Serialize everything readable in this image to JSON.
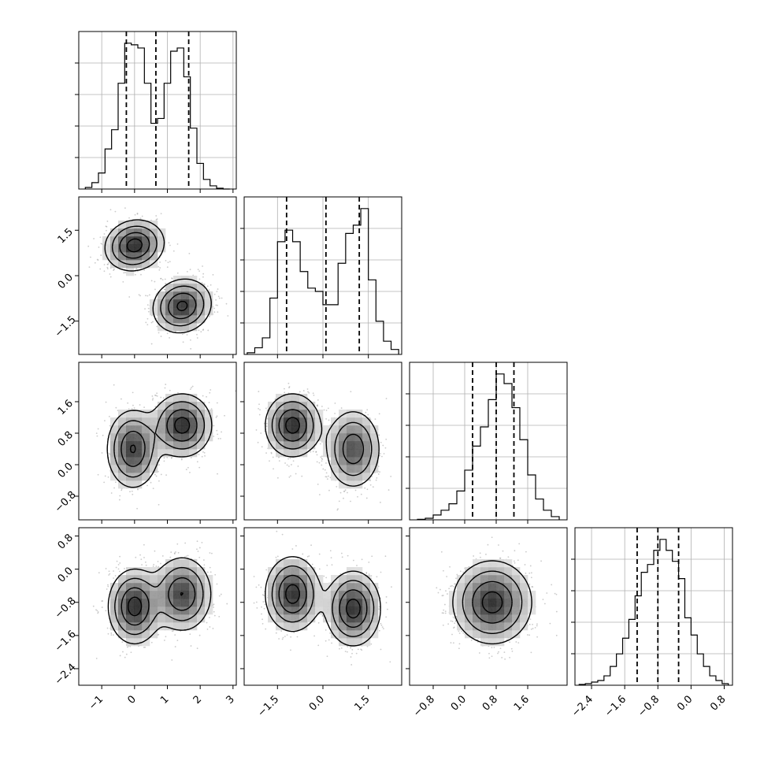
{
  "chart_data": {
    "type": "corner",
    "grid": true,
    "colors": {
      "ink": "#000000",
      "grid": "#b0b0b0",
      "scatter": "#8c8c8c"
    },
    "parameters": [
      {
        "name": "",
        "range": [
          -1.7,
          3.1
        ],
        "ticks": [
          -1,
          0,
          1,
          2,
          3
        ],
        "tick_labels": [
          "−1",
          "0",
          "1",
          "2",
          "3"
        ],
        "quantiles": [
          -0.25,
          0.65,
          1.65
        ],
        "hist": {
          "edges": [
            -1.5,
            -1.3,
            -1.1,
            -0.9,
            -0.7,
            -0.5,
            -0.3,
            -0.1,
            0.1,
            0.3,
            0.5,
            0.7,
            0.9,
            1.1,
            1.3,
            1.5,
            1.7,
            1.9,
            2.1,
            2.3,
            2.5,
            2.7,
            2.9
          ],
          "counts": [
            0.01,
            0.04,
            0.1,
            0.25,
            0.37,
            0.66,
            0.91,
            0.9,
            0.88,
            0.66,
            0.41,
            0.44,
            0.66,
            0.86,
            0.88,
            0.7,
            0.38,
            0.16,
            0.06,
            0.02,
            0.005,
            0
          ]
        },
        "mixture": [
          {
            "w": 0.5,
            "mu": 0.0,
            "sd": 0.5
          },
          {
            "w": 0.5,
            "mu": 1.45,
            "sd": 0.5
          }
        ]
      },
      {
        "name": "",
        "range": [
          -2.6,
          2.6
        ],
        "ticks": [
          -1.5,
          0.0,
          1.5
        ],
        "tick_labels": [
          "−1.5",
          "0.0",
          "1.5"
        ],
        "quantiles": [
          -1.2,
          0.1,
          1.2
        ],
        "hist": {
          "edges": [
            -2.5,
            -2.25,
            -2.0,
            -1.75,
            -1.5,
            -1.25,
            -1.0,
            -0.75,
            -0.5,
            -0.25,
            0.0,
            0.25,
            0.5,
            0.75,
            1.0,
            1.25,
            1.5,
            1.75,
            2.0,
            2.25,
            2.5
          ],
          "counts": [
            0.01,
            0.04,
            0.1,
            0.34,
            0.68,
            0.75,
            0.68,
            0.5,
            0.4,
            0.38,
            0.3,
            0.3,
            0.55,
            0.73,
            0.78,
            0.88,
            0.45,
            0.2,
            0.08,
            0.03
          ]
        },
        "mixture": [
          {
            "w": 0.5,
            "mu": -1.0,
            "sd": 0.5
          },
          {
            "w": 0.5,
            "mu": 1.0,
            "sd": 0.5
          }
        ]
      },
      {
        "name": "",
        "range": [
          -1.4,
          2.6
        ],
        "ticks": [
          -0.8,
          0.0,
          0.8,
          1.6
        ],
        "tick_labels": [
          "−0.8",
          "0.0",
          "0.8",
          "1.6"
        ],
        "quantiles": [
          0.2,
          0.8,
          1.25
        ],
        "hist": {
          "edges": [
            -1.2,
            -1.0,
            -0.8,
            -0.6,
            -0.4,
            -0.2,
            0.0,
            0.2,
            0.4,
            0.6,
            0.8,
            1.0,
            1.2,
            1.4,
            1.6,
            1.8,
            2.0,
            2.2,
            2.4
          ],
          "counts": [
            0.003,
            0.01,
            0.03,
            0.06,
            0.1,
            0.18,
            0.31,
            0.46,
            0.58,
            0.75,
            0.91,
            0.85,
            0.7,
            0.5,
            0.28,
            0.13,
            0.06,
            0.02
          ]
        },
        "mixture": [
          {
            "w": 1.0,
            "mu": 0.7,
            "sd": 0.5
          }
        ]
      },
      {
        "name": "",
        "range": [
          -2.8,
          1.0
        ],
        "ticks": [
          -2.4,
          -1.6,
          -0.8,
          0.0,
          0.8
        ],
        "tick_labels": [
          "−2.4",
          "−1.6",
          "−0.8",
          "0.0",
          "0.8"
        ],
        "quantiles": [
          -1.3,
          -0.8,
          -0.3
        ],
        "hist": {
          "edges": [
            -2.7,
            -2.55,
            -2.4,
            -2.25,
            -2.1,
            -1.95,
            -1.8,
            -1.65,
            -1.5,
            -1.35,
            -1.2,
            -1.05,
            -0.9,
            -0.75,
            -0.6,
            -0.45,
            -0.3,
            -0.15,
            0.0,
            0.15,
            0.3,
            0.45,
            0.6,
            0.75,
            0.9
          ],
          "counts": [
            0.005,
            0.01,
            0.02,
            0.03,
            0.06,
            0.12,
            0.2,
            0.3,
            0.42,
            0.57,
            0.72,
            0.77,
            0.86,
            0.93,
            0.86,
            0.79,
            0.68,
            0.43,
            0.32,
            0.2,
            0.12,
            0.06,
            0.03,
            0.01
          ]
        },
        "mixture": [
          {
            "w": 1.0,
            "mu": -0.8,
            "sd": 0.5
          }
        ]
      }
    ],
    "pairs": [
      {
        "x": 0,
        "y": 1,
        "components": [
          {
            "w": 0.5,
            "mx": 0.0,
            "my": 1.0,
            "sx": 0.45,
            "sy": 0.42,
            "rho": 0.1
          },
          {
            "w": 0.5,
            "mx": 1.45,
            "my": -1.0,
            "sx": 0.45,
            "sy": 0.45,
            "rho": 0.1
          }
        ]
      },
      {
        "x": 0,
        "y": 2,
        "components": [
          {
            "w": 0.5,
            "mx": -0.05,
            "my": 0.4,
            "sx": 0.4,
            "sy": 0.5,
            "rho": 0.0
          },
          {
            "w": 0.5,
            "mx": 1.45,
            "my": 1.0,
            "sx": 0.45,
            "sy": 0.4,
            "rho": 0.0
          }
        ]
      },
      {
        "x": 1,
        "y": 2,
        "components": [
          {
            "w": 0.5,
            "mx": -1.0,
            "my": 1.0,
            "sx": 0.45,
            "sy": 0.4,
            "rho": 0.0
          },
          {
            "w": 0.5,
            "mx": 1.0,
            "my": 0.4,
            "sx": 0.45,
            "sy": 0.5,
            "rho": 0.0
          }
        ]
      },
      {
        "x": 0,
        "y": 3,
        "components": [
          {
            "w": 0.5,
            "mx": 0.0,
            "my": -0.9,
            "sx": 0.4,
            "sy": 0.45,
            "rho": 0.0
          },
          {
            "w": 0.5,
            "mx": 1.45,
            "my": -0.6,
            "sx": 0.45,
            "sy": 0.45,
            "rho": 0.0
          }
        ]
      },
      {
        "x": 1,
        "y": 3,
        "components": [
          {
            "w": 0.5,
            "mx": -1.0,
            "my": -0.6,
            "sx": 0.45,
            "sy": 0.45,
            "rho": 0.0
          },
          {
            "w": 0.5,
            "mx": 1.0,
            "my": -0.95,
            "sx": 0.45,
            "sy": 0.45,
            "rho": 0.0
          }
        ]
      },
      {
        "x": 2,
        "y": 3,
        "components": [
          {
            "w": 1.0,
            "mx": 0.7,
            "my": -0.8,
            "sx": 0.5,
            "sy": 0.5,
            "rho": 0.0
          }
        ]
      }
    ],
    "contour_levels_sigma": [
      0.5,
      1.0,
      1.5,
      2.0
    ],
    "scatter_points_per_panel": 1200
  }
}
